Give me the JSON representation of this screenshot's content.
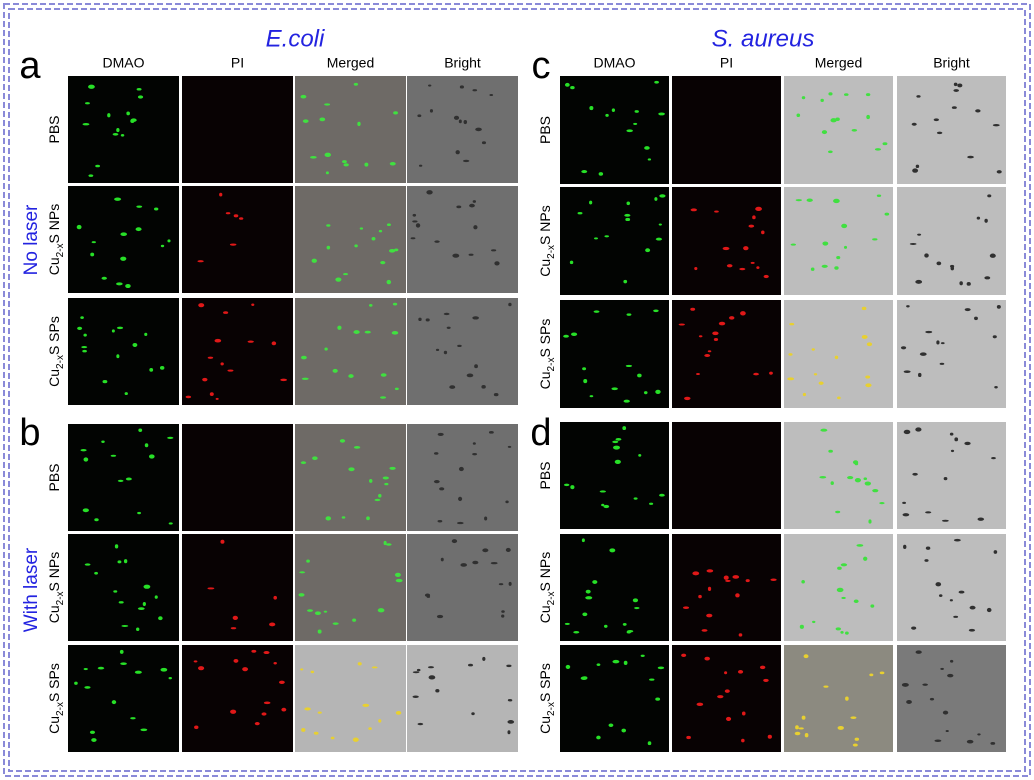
{
  "figure": {
    "titles": [
      "E.coli",
      "S. aureus"
    ],
    "side_labels": [
      "No laser",
      "With laser"
    ],
    "columns": [
      "DMAO",
      "PI",
      "Merged",
      "Bright"
    ],
    "rows": [
      {
        "base": "PBS"
      },
      {
        "base": "Cu",
        "sub": "2-x",
        "rest": "S NPs"
      },
      {
        "base": "Cu",
        "sub": "2-x",
        "rest": "S SPs"
      }
    ],
    "panels": [
      "a",
      "b",
      "c",
      "d"
    ]
  }
}
